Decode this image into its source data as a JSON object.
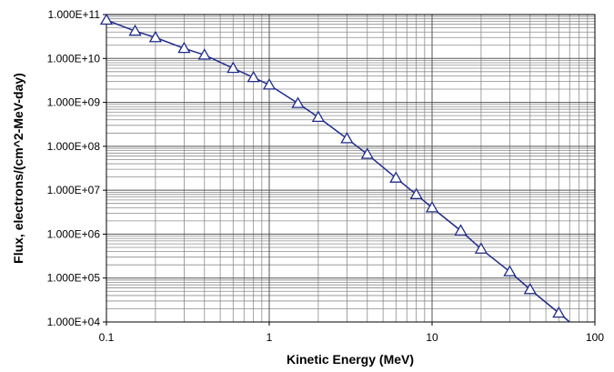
{
  "chart_data": {
    "type": "line",
    "xlabel": "Kinetic Energy (MeV)",
    "ylabel": "Flux, electrons/(cm^2-MeV-day)",
    "x_scale": "log",
    "y_scale": "log",
    "xlim": [
      0.1,
      100
    ],
    "ylim": [
      10000,
      100000000000
    ],
    "grid": true,
    "x_tick_labels": [
      "0.1",
      "1",
      "10",
      "100"
    ],
    "y_tick_labels": [
      "1.000E+04",
      "1.000E+05",
      "1.000E+06",
      "1.000E+07",
      "1.000E+08",
      "1.000E+09",
      "1.000E+10",
      "1.000E+11"
    ],
    "series": [
      {
        "color": "#1f2a8a",
        "marker": "triangle",
        "x": [
          0.1,
          0.15,
          0.2,
          0.3,
          0.4,
          0.6,
          0.8,
          1,
          1.5,
          2,
          3,
          4,
          6,
          8,
          10,
          15,
          20,
          30,
          40,
          60
        ],
        "y": [
          75000000000,
          42000000000,
          30000000000,
          17000000000,
          12000000000,
          6000000000,
          3700000000,
          2500000000,
          950000000,
          460000000,
          150000000,
          66000000,
          19000000,
          8000000,
          4000000,
          1200000,
          460000,
          140000,
          55000,
          16000
        ]
      }
    ]
  }
}
